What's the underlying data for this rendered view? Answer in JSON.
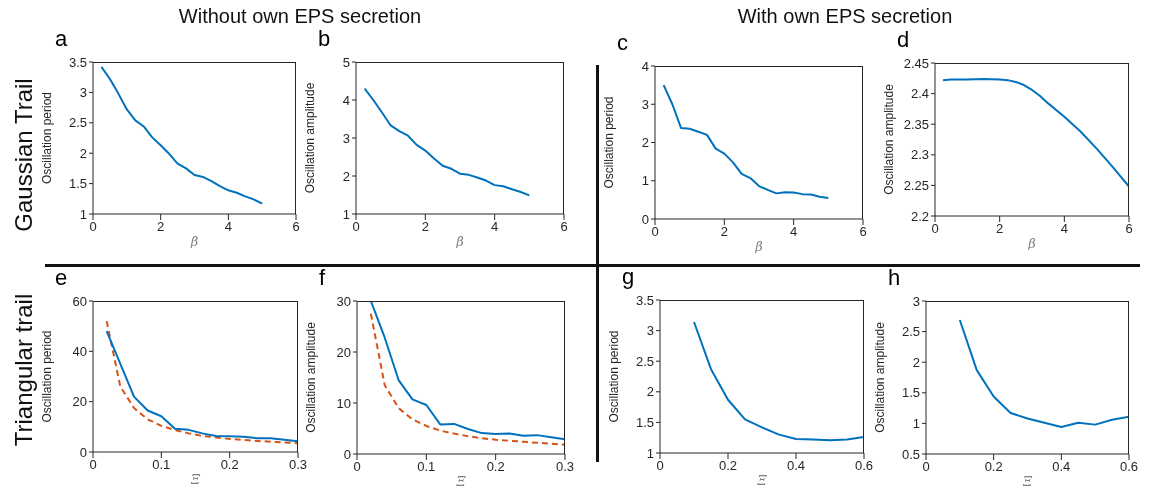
{
  "chart_data": [
    {
      "type": "line",
      "title": "a",
      "xlabel": "β",
      "ylabel": "Oscillation period",
      "annotations": [
        "Without own EPS secretion",
        "Gaussian Trail"
      ],
      "x": [
        0.25,
        0.5,
        0.75,
        1,
        1.25,
        1.5,
        1.75,
        2,
        2.25,
        2.5,
        2.75,
        3,
        3.25,
        3.5,
        3.75,
        4,
        4.25,
        4.5,
        4.75,
        5
      ],
      "xlim": [
        0,
        6
      ],
      "xticks": [
        0,
        2,
        4,
        6
      ],
      "ylim": [
        1,
        3.5
      ],
      "yticks": [
        1,
        1.5,
        2,
        2.5,
        3,
        3.5
      ],
      "series": [
        {
          "color": "#0072bd",
          "values": [
            3.42,
            3.22,
            2.98,
            2.72,
            2.54,
            2.44,
            2.26,
            2.13,
            1.99,
            1.83,
            1.75,
            1.64,
            1.61,
            1.54,
            1.46,
            1.39,
            1.35,
            1.29,
            1.24,
            1.17
          ]
        }
      ]
    },
    {
      "type": "line",
      "title": "b",
      "xlabel": "β",
      "ylabel": "Oscillation amplitude",
      "x": [
        0.25,
        0.5,
        0.75,
        1,
        1.25,
        1.5,
        1.75,
        2,
        2.25,
        2.5,
        2.75,
        3,
        3.25,
        3.5,
        3.75,
        4,
        4.25,
        4.5,
        4.75,
        5
      ],
      "xlim": [
        0,
        6
      ],
      "xticks": [
        0,
        2,
        4,
        6
      ],
      "ylim": [
        1,
        5
      ],
      "yticks": [
        1,
        2,
        3,
        4,
        5
      ],
      "series": [
        {
          "color": "#0072bd",
          "values": [
            4.3,
            4.0,
            3.67,
            3.33,
            3.18,
            3.06,
            2.82,
            2.67,
            2.46,
            2.27,
            2.19,
            2.06,
            2.03,
            1.96,
            1.88,
            1.76,
            1.73,
            1.65,
            1.58,
            1.49
          ]
        }
      ]
    },
    {
      "type": "line",
      "title": "c",
      "xlabel": "β",
      "ylabel": "Oscillation period",
      "annotations": [
        "With own EPS secretion"
      ],
      "x": [
        0.25,
        0.5,
        0.75,
        1,
        1.25,
        1.5,
        1.75,
        2,
        2.25,
        2.5,
        2.75,
        3,
        3.25,
        3.5,
        3.75,
        4,
        4.25,
        4.5,
        4.75,
        5
      ],
      "xlim": [
        0,
        6
      ],
      "xticks": [
        0,
        2,
        4,
        6
      ],
      "ylim": [
        0,
        4
      ],
      "yticks": [
        0,
        1,
        2,
        3,
        4
      ],
      "series": [
        {
          "color": "#0072bd",
          "values": [
            3.5,
            3.0,
            2.38,
            2.36,
            2.28,
            2.2,
            1.84,
            1.71,
            1.48,
            1.18,
            1.07,
            0.86,
            0.76,
            0.67,
            0.7,
            0.69,
            0.65,
            0.64,
            0.58,
            0.55
          ]
        }
      ]
    },
    {
      "type": "line",
      "title": "d",
      "xlabel": "β",
      "ylabel": "Oscillation amplitude",
      "x": [
        0.25,
        0.5,
        1,
        1.5,
        2,
        2.25,
        2.5,
        2.75,
        3,
        3.25,
        3.5,
        4,
        4.5,
        5,
        5.5,
        6
      ],
      "xlim": [
        0,
        6
      ],
      "xticks": [
        0,
        2,
        4,
        6
      ],
      "ylim": [
        2.2,
        2.45
      ],
      "yticks": [
        2.2,
        2.25,
        2.3,
        2.35,
        2.4,
        2.45
      ],
      "series": [
        {
          "color": "#0072bd",
          "values": [
            2.422,
            2.423,
            2.423,
            2.424,
            2.423,
            2.422,
            2.419,
            2.414,
            2.406,
            2.396,
            2.384,
            2.362,
            2.338,
            2.31,
            2.28,
            2.248
          ]
        }
      ]
    },
    {
      "type": "line",
      "title": "e",
      "xlabel": "Ξ",
      "ylabel": "Oscillation period",
      "annotations": [
        "Triangular trail"
      ],
      "x": [
        0.02,
        0.04,
        0.06,
        0.08,
        0.1,
        0.12,
        0.14,
        0.16,
        0.18,
        0.2,
        0.22,
        0.24,
        0.26,
        0.28,
        0.3
      ],
      "xlim": [
        0,
        0.3
      ],
      "xticks": [
        0,
        0.1,
        0.2,
        0.3
      ],
      "ylim": [
        0,
        60
      ],
      "yticks": [
        0,
        20,
        40,
        60
      ],
      "series": [
        {
          "color": "#d95319",
          "line_style": "dashed",
          "values": [
            52,
            26,
            17.5,
            13,
            10.4,
            8.7,
            7.4,
            6.4,
            5.8,
            5.2,
            4.8,
            4.4,
            4.1,
            3.8,
            3.5
          ]
        },
        {
          "color": "#0072bd",
          "values": [
            48,
            35,
            22,
            16.5,
            14.2,
            9.2,
            8.8,
            7.4,
            6.4,
            6.3,
            6.1,
            5.5,
            5.5,
            4.9,
            4.3
          ]
        }
      ]
    },
    {
      "type": "line",
      "title": "f",
      "xlabel": "Ξ",
      "ylabel": "Oscillation amplitude",
      "x": [
        0.02,
        0.04,
        0.06,
        0.08,
        0.1,
        0.12,
        0.14,
        0.16,
        0.18,
        0.2,
        0.22,
        0.24,
        0.26,
        0.28,
        0.3
      ],
      "xlim": [
        0,
        0.3
      ],
      "xticks": [
        0,
        0.1,
        0.2,
        0.3
      ],
      "ylim": [
        0,
        30
      ],
      "yticks": [
        0,
        10,
        20,
        30
      ],
      "series": [
        {
          "color": "#d95319",
          "line_style": "dashed",
          "values": [
            27.5,
            13.5,
            9,
            6.8,
            5.5,
            4.6,
            4.0,
            3.5,
            3.1,
            2.8,
            2.6,
            2.4,
            2.2,
            2.0,
            1.8
          ]
        },
        {
          "color": "#0072bd",
          "values": [
            30,
            22.8,
            14.5,
            10.7,
            9.6,
            5.8,
            5.9,
            4.9,
            4.1,
            3.9,
            4.0,
            3.6,
            3.7,
            3.3,
            2.9
          ]
        }
      ]
    },
    {
      "type": "line",
      "title": "g",
      "xlabel": "Ξ",
      "ylabel": "Oscillation period",
      "x": [
        0.1,
        0.15,
        0.2,
        0.25,
        0.3,
        0.35,
        0.4,
        0.45,
        0.5,
        0.55,
        0.6
      ],
      "xlim": [
        0,
        0.6
      ],
      "xticks": [
        0,
        0.2,
        0.4,
        0.6
      ],
      "ylim": [
        1,
        3.5
      ],
      "yticks": [
        1,
        1.5,
        2,
        2.5,
        3,
        3.5
      ],
      "series": [
        {
          "color": "#0072bd",
          "values": [
            3.14,
            2.37,
            1.87,
            1.55,
            1.42,
            1.3,
            1.23,
            1.22,
            1.21,
            1.22,
            1.26
          ]
        }
      ]
    },
    {
      "type": "line",
      "title": "h",
      "xlabel": "Ξ",
      "ylabel": "Oscillation amplitude",
      "x": [
        0.1,
        0.15,
        0.2,
        0.25,
        0.3,
        0.35,
        0.4,
        0.45,
        0.5,
        0.55,
        0.6
      ],
      "xlim": [
        0,
        0.6
      ],
      "xticks": [
        0,
        0.2,
        0.4,
        0.6
      ],
      "ylim": [
        0.5,
        3
      ],
      "yticks": [
        0.5,
        1,
        1.5,
        2,
        2.5,
        3
      ],
      "series": [
        {
          "color": "#0072bd",
          "values": [
            2.69,
            1.87,
            1.44,
            1.17,
            1.08,
            1.01,
            0.94,
            1.01,
            0.98,
            1.06,
            1.11
          ]
        }
      ]
    }
  ]
}
